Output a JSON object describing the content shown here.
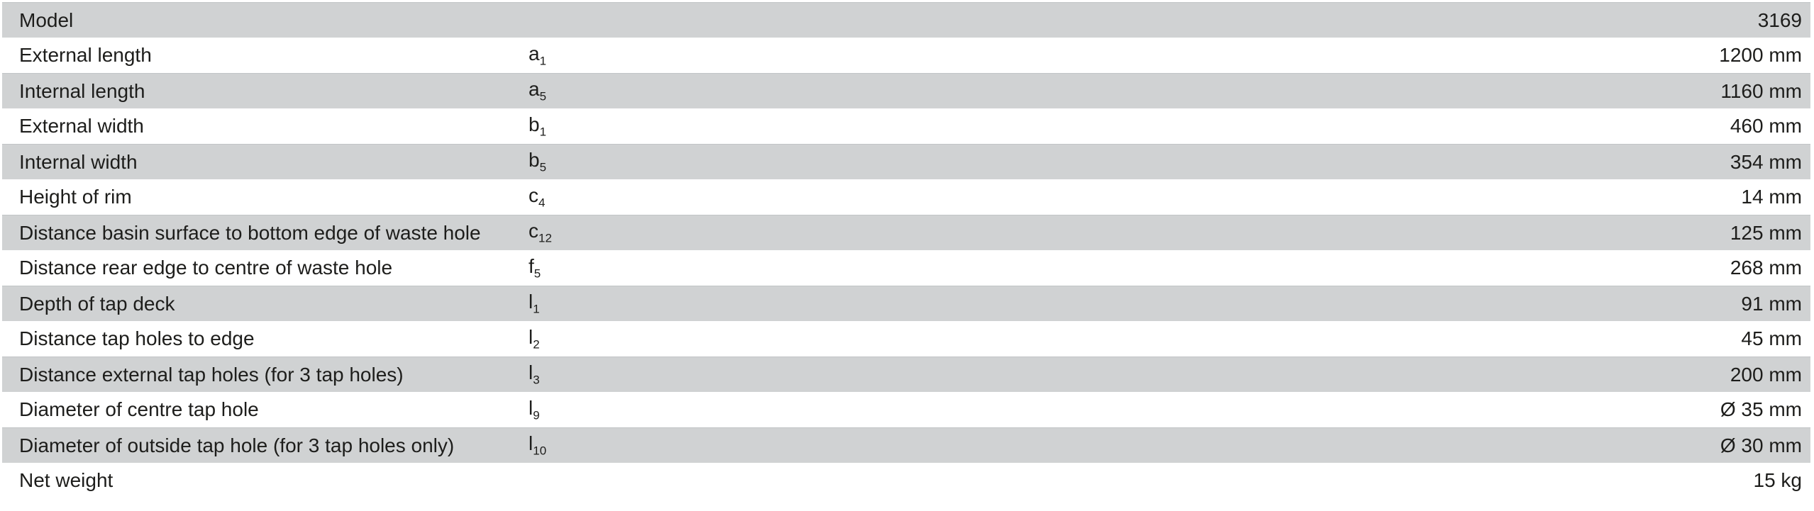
{
  "colors": {
    "shaded_row": "#d0d2d3",
    "shaded_row_border": "#c2c5c7",
    "text": "#1d1d1b"
  },
  "rows": [
    {
      "label": "Model",
      "symbol": "",
      "sub": "",
      "value": "3169"
    },
    {
      "label": "External length",
      "symbol": "a",
      "sub": "1",
      "value": "1200 mm"
    },
    {
      "label": "Internal length",
      "symbol": "a",
      "sub": "5",
      "value": "1160 mm"
    },
    {
      "label": "External width",
      "symbol": "b",
      "sub": "1",
      "value": "460 mm"
    },
    {
      "label": "Internal width",
      "symbol": "b",
      "sub": "5",
      "value": "354 mm"
    },
    {
      "label": "Height of rim",
      "symbol": "c",
      "sub": "4",
      "value": "14 mm"
    },
    {
      "label": "Distance basin surface to bottom edge of waste hole",
      "symbol": "c",
      "sub": "12",
      "value": "125 mm"
    },
    {
      "label": "Distance rear edge to centre of waste hole",
      "symbol": "f",
      "sub": "5",
      "value": "268 mm"
    },
    {
      "label": "Depth of tap deck",
      "symbol": "l",
      "sub": "1",
      "value": "91 mm"
    },
    {
      "label": "Distance tap holes to edge",
      "symbol": "l",
      "sub": "2",
      "value": "45 mm"
    },
    {
      "label": "Distance external tap holes (for 3 tap holes)",
      "symbol": "l",
      "sub": "3",
      "value": "200 mm"
    },
    {
      "label": "Diameter of centre tap hole",
      "symbol": "l",
      "sub": "9",
      "value": "Ø 35 mm"
    },
    {
      "label": "Diameter of outside tap hole (for 3 tap holes only)",
      "symbol": "l",
      "sub": "10",
      "value": "Ø 30 mm"
    },
    {
      "label": "Net weight",
      "symbol": "",
      "sub": "",
      "value": "15 kg"
    }
  ]
}
